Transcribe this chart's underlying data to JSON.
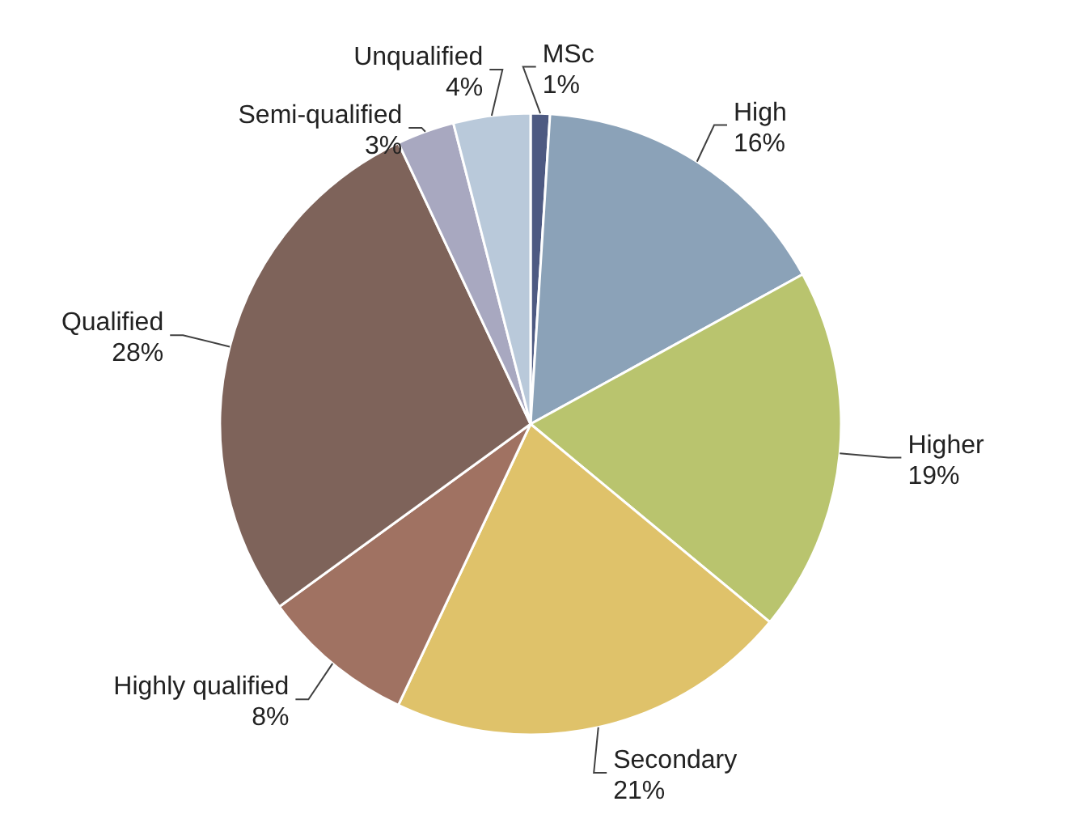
{
  "chart_data": {
    "type": "pie",
    "categories": [
      "MSc",
      "High",
      "Higher",
      "Secondary",
      "Highly qualified",
      "Qualified",
      "Semi-qualified",
      "Unqualified"
    ],
    "values": [
      1,
      16,
      19,
      21,
      8,
      28,
      3,
      4
    ],
    "colors": [
      "#4e5a82",
      "#8ba2b8",
      "#b9c46e",
      "#dfc26a",
      "#a07262",
      "#7e635a",
      "#a8a8c0",
      "#b9c9da"
    ],
    "value_labels": [
      "1%",
      "16%",
      "19%",
      "21%",
      "8%",
      "28%",
      "3%",
      "4%"
    ]
  }
}
